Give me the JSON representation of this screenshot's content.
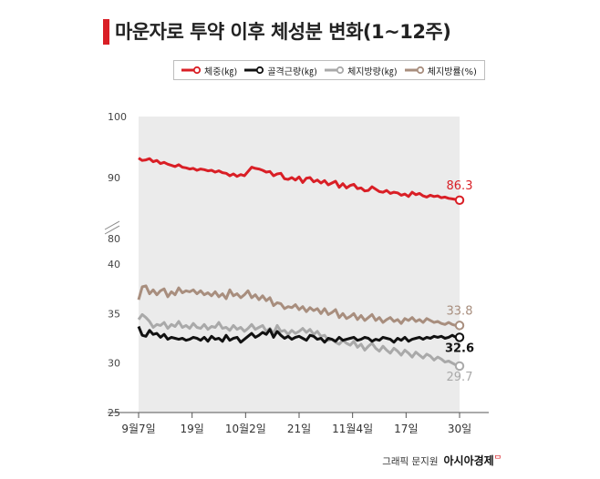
{
  "title": "마운자로 투약 이후 체성분 변화(1~12주)",
  "footer": {
    "credit": "그래픽 문지원",
    "brand": "아시아경제"
  },
  "colors": {
    "accent": "#d91f26",
    "weight": "#d91f26",
    "muscle": "#111111",
    "fatkg": "#a9a9a9",
    "fatpct": "#a88e7e",
    "plot_bg": "#ebebeb"
  },
  "chart_data": {
    "type": "line",
    "title": "마운자로 투약 이후 체성분 변화(1~12주)",
    "xlabel": "",
    "ylabel": "",
    "x_ticks": [
      "9월7일",
      "19일",
      "10월2일",
      "21일",
      "11월4일",
      "17일",
      "30일"
    ],
    "y_ticks_upper": [
      "100",
      "90",
      "80"
    ],
    "y_ticks_lower": [
      "40",
      "35",
      "30",
      "25"
    ],
    "ylim_upper": [
      80,
      100
    ],
    "ylim_lower": [
      25,
      40
    ],
    "axis_break": true,
    "legend_position": "top",
    "grid": false,
    "series": [
      {
        "name": "체중(㎏)",
        "key": "weight",
        "end_label": "86.3",
        "values": [
          93.2,
          92.8,
          92.9,
          93.1,
          92.6,
          92.8,
          92.3,
          92.5,
          92.2,
          92.0,
          91.8,
          92.1,
          91.7,
          91.6,
          91.4,
          91.5,
          91.2,
          91.4,
          91.3,
          91.1,
          91.2,
          90.9,
          91.1,
          90.8,
          90.7,
          90.3,
          90.6,
          90.2,
          90.5,
          90.3,
          91.0,
          91.7,
          91.5,
          91.4,
          91.2,
          90.9,
          91.0,
          90.3,
          90.6,
          90.7,
          89.8,
          89.7,
          90.0,
          89.6,
          90.1,
          89.2,
          89.9,
          90.0,
          89.3,
          89.6,
          89.1,
          89.5,
          88.8,
          89.1,
          89.4,
          88.4,
          89.0,
          88.3,
          88.7,
          88.9,
          88.2,
          88.3,
          87.8,
          87.9,
          88.5,
          88.1,
          87.7,
          87.6,
          87.9,
          87.4,
          87.6,
          87.5,
          87.1,
          87.3,
          86.9,
          87.6,
          87.2,
          87.4,
          87.0,
          86.8,
          87.1,
          86.9,
          87.0,
          86.7,
          86.8,
          86.6,
          86.5,
          86.4,
          86.3
        ]
      },
      {
        "name": "골격근량(㎏)",
        "key": "muscle",
        "end_label": "32.6",
        "values": [
          33.7,
          32.8,
          32.7,
          33.3,
          32.9,
          33.0,
          32.6,
          32.9,
          32.4,
          32.6,
          32.5,
          32.4,
          32.5,
          32.3,
          32.4,
          32.6,
          32.5,
          32.3,
          32.6,
          32.2,
          32.7,
          32.4,
          32.5,
          32.2,
          32.8,
          32.3,
          32.5,
          32.6,
          32.1,
          32.4,
          32.7,
          33.0,
          32.6,
          32.8,
          33.1,
          32.9,
          33.4,
          32.6,
          33.2,
          32.8,
          32.5,
          32.7,
          32.4,
          32.6,
          32.7,
          32.5,
          32.3,
          32.8,
          32.7,
          32.4,
          32.5,
          32.1,
          32.5,
          32.4,
          32.2,
          32.6,
          32.3,
          32.4,
          32.5,
          32.6,
          32.3,
          32.4,
          32.6,
          32.5,
          32.2,
          32.4,
          32.3,
          32.6,
          32.5,
          32.4,
          32.1,
          32.5,
          32.3,
          32.6,
          32.2,
          32.4,
          32.5,
          32.6,
          32.4,
          32.6,
          32.5,
          32.7,
          32.6,
          32.7,
          32.5,
          32.6,
          32.8,
          32.6,
          32.6
        ]
      },
      {
        "name": "체지방량(㎏)",
        "key": "fatkg",
        "end_label": "29.7",
        "values": [
          34.4,
          34.9,
          34.6,
          34.2,
          33.6,
          33.9,
          33.8,
          34.1,
          33.5,
          33.9,
          33.7,
          34.2,
          33.6,
          33.8,
          33.5,
          34.0,
          33.6,
          33.5,
          33.9,
          33.4,
          33.7,
          33.6,
          34.1,
          33.5,
          33.6,
          33.3,
          33.8,
          33.4,
          33.6,
          33.2,
          33.5,
          33.9,
          33.4,
          33.6,
          33.8,
          33.2,
          33.5,
          33.0,
          33.8,
          33.2,
          33.3,
          32.9,
          33.3,
          33.0,
          33.2,
          33.5,
          33.1,
          33.4,
          32.9,
          33.2,
          32.7,
          32.8,
          32.3,
          32.4,
          32.1,
          31.9,
          32.3,
          32.0,
          31.8,
          32.2,
          31.6,
          31.9,
          31.3,
          31.7,
          32.0,
          31.5,
          31.2,
          31.7,
          31.3,
          31.0,
          31.5,
          31.2,
          30.8,
          31.3,
          31.0,
          30.6,
          31.1,
          30.8,
          30.5,
          30.9,
          30.7,
          30.3,
          30.6,
          30.4,
          30.1,
          30.2,
          30.0,
          29.8,
          29.7
        ]
      },
      {
        "name": "체지방률(%)",
        "key": "fatpct",
        "end_label": "33.8",
        "values": [
          36.4,
          37.7,
          37.8,
          37.0,
          37.4,
          36.9,
          37.3,
          37.5,
          36.7,
          37.2,
          36.9,
          37.6,
          37.1,
          37.3,
          37.2,
          37.4,
          37.0,
          37.3,
          36.9,
          37.1,
          36.8,
          37.2,
          36.7,
          37.0,
          36.5,
          37.4,
          36.8,
          37.0,
          36.6,
          36.9,
          37.3,
          36.6,
          36.9,
          36.4,
          36.8,
          36.3,
          36.6,
          35.8,
          36.1,
          36.0,
          35.5,
          35.7,
          35.6,
          35.9,
          35.4,
          35.7,
          35.2,
          35.6,
          35.3,
          35.5,
          35.0,
          35.5,
          34.9,
          35.1,
          35.4,
          34.6,
          35.0,
          34.5,
          34.7,
          35.0,
          34.4,
          34.8,
          34.3,
          34.6,
          34.9,
          34.3,
          34.6,
          34.1,
          34.4,
          34.6,
          34.2,
          34.4,
          34.0,
          34.5,
          34.3,
          34.6,
          34.2,
          34.4,
          34.1,
          34.5,
          34.3,
          34.1,
          34.2,
          34.0,
          33.9,
          34.1,
          33.9,
          33.8,
          33.8
        ]
      }
    ]
  }
}
